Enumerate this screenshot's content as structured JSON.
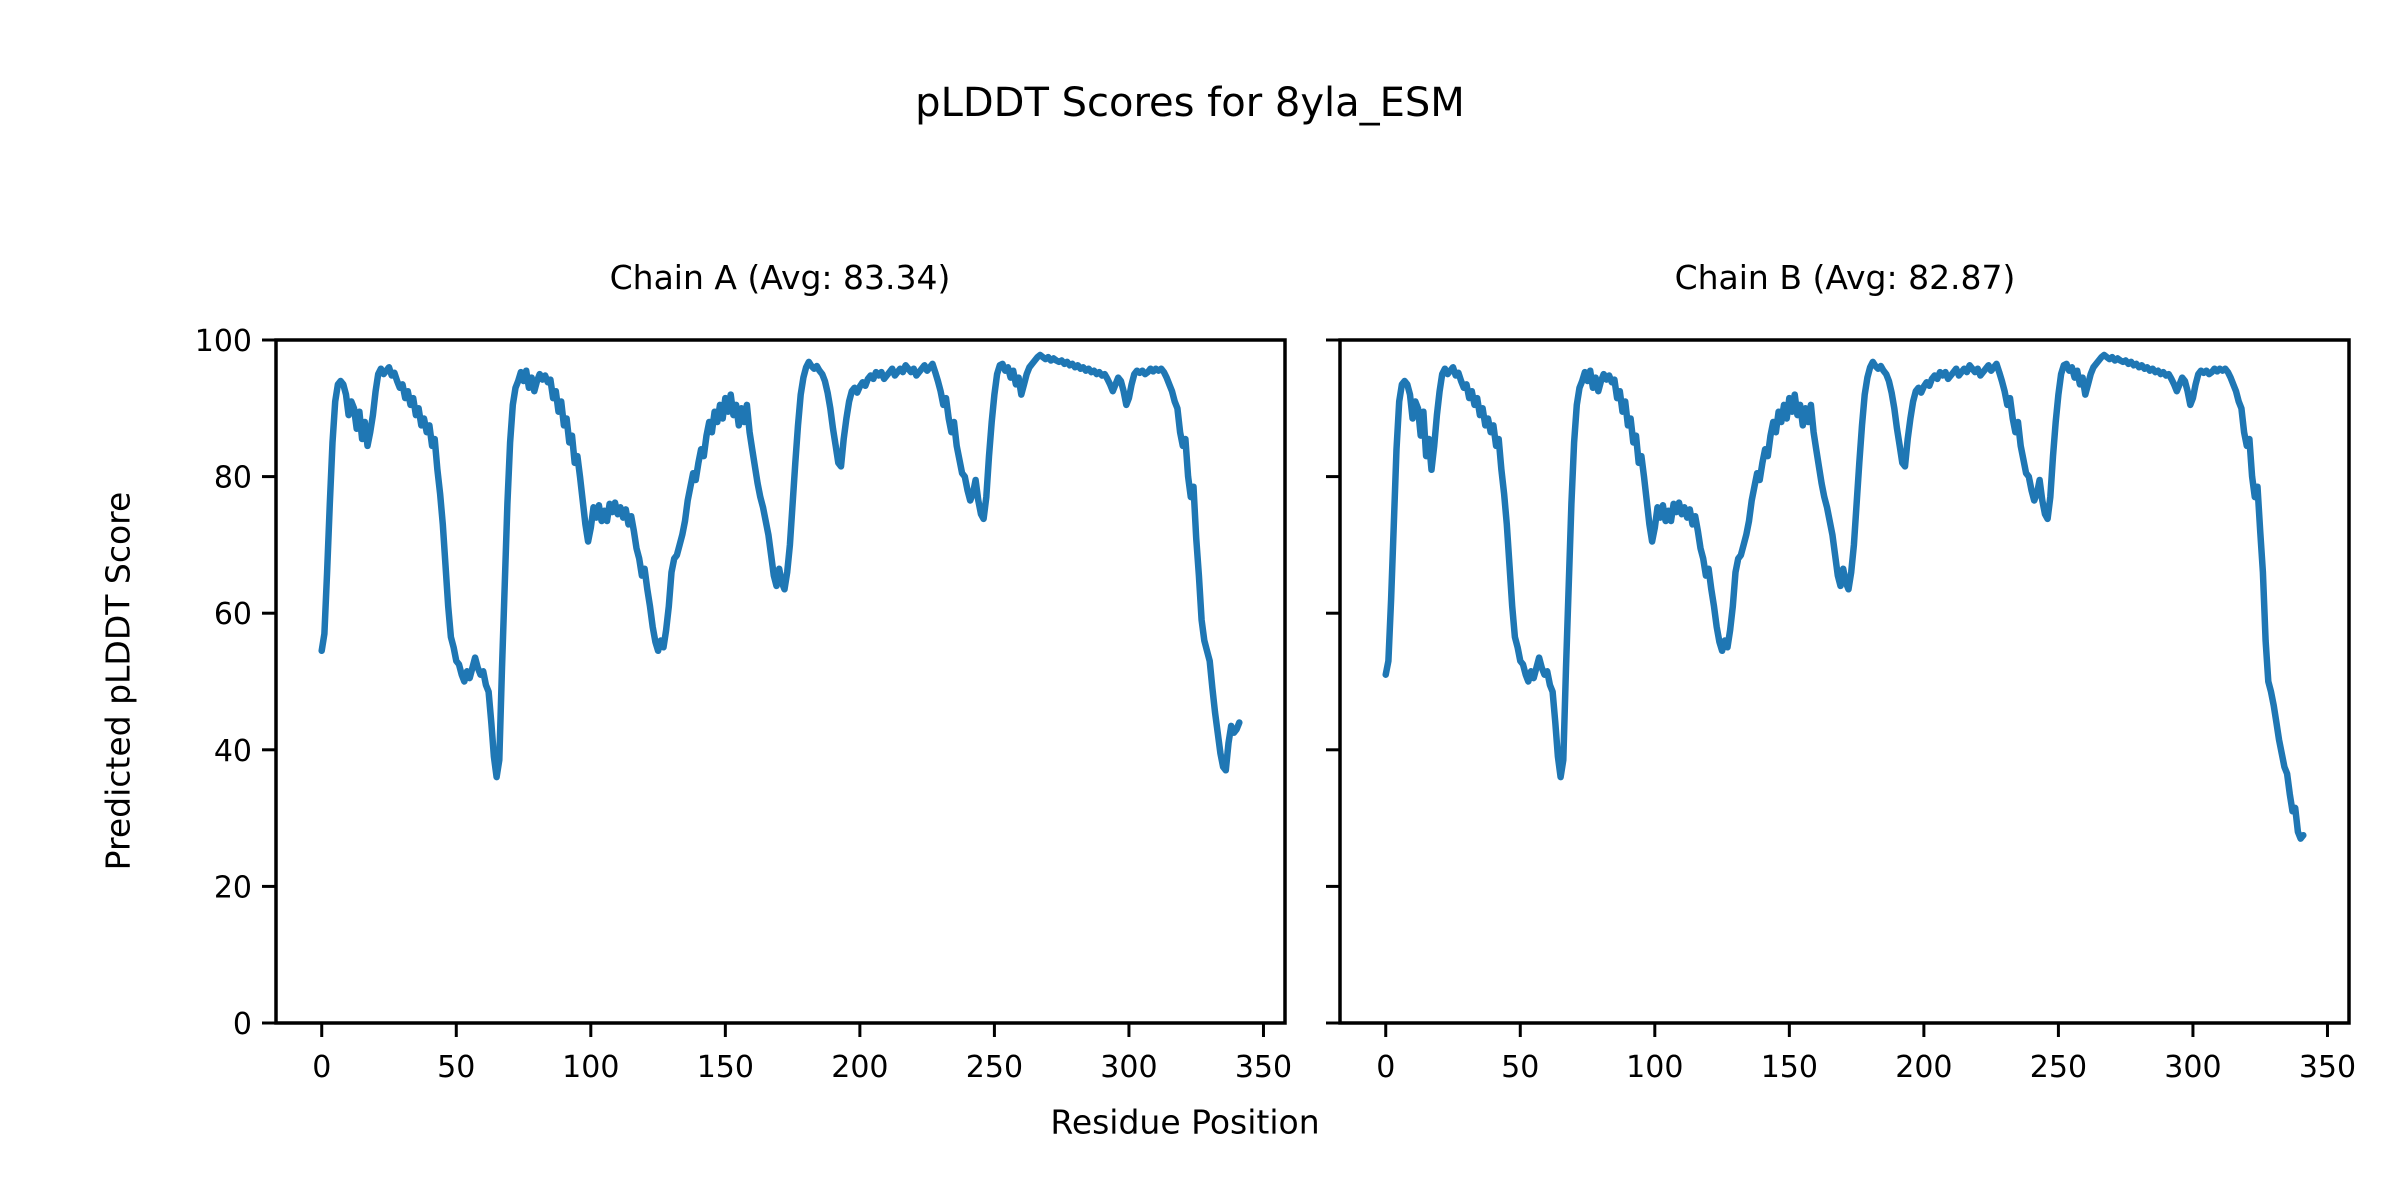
{
  "figure": {
    "suptitle": "pLDDT Scores for 8yla_ESM",
    "xlabel": "Residue Position",
    "ylabel": "Predicted pLDDT Score",
    "line_color": "#1f77b4",
    "text_color": "#000000",
    "background": "#ffffff"
  },
  "chart_data": [
    {
      "type": "line",
      "title": "Chain A (Avg: 83.34)",
      "chain": "A",
      "avg": 83.34,
      "xlabel": "Residue Position",
      "ylabel": "Predicted pLDDT Score",
      "xlim": [
        -17,
        358
      ],
      "ylim": [
        0,
        100
      ],
      "xticks": [
        0,
        50,
        100,
        150,
        200,
        250,
        300,
        350
      ],
      "yticks": [
        0,
        20,
        40,
        60,
        80,
        100
      ],
      "show_y_tick_labels": true,
      "grid": false,
      "legend": "none",
      "x_start": 0,
      "values": [
        54.5,
        57,
        66,
        76,
        85,
        91,
        93.5,
        94,
        93.5,
        92,
        89,
        91,
        90,
        87,
        89.5,
        85.5,
        88,
        84.5,
        86.5,
        89,
        92.5,
        95,
        95.8,
        95,
        95.5,
        96,
        94.8,
        95.2,
        94,
        93,
        93.5,
        91.5,
        92.5,
        90.5,
        91.5,
        89,
        90,
        87.5,
        88.5,
        86.5,
        87.5,
        84.5,
        85.5,
        81,
        77.5,
        73,
        67,
        61,
        56.5,
        55,
        53,
        52.5,
        51,
        50,
        51.5,
        50.5,
        52,
        53.5,
        52,
        51,
        51.5,
        49.5,
        48.5,
        44,
        39,
        36,
        38.5,
        52,
        64,
        76,
        85,
        90.5,
        93,
        94,
        95.3,
        94,
        95.5,
        93,
        94.5,
        92.5,
        94,
        95,
        94.2,
        94.8,
        93.8,
        94.2,
        91.5,
        92.5,
        89.5,
        91,
        87.5,
        88.5,
        85,
        86,
        82,
        83,
        80,
        76.5,
        73,
        70.5,
        72.5,
        75.5,
        74,
        75.8,
        73.5,
        75,
        73.5,
        76,
        74.8,
        76.2,
        74.5,
        75.5,
        74,
        75.2,
        73,
        74.2,
        72,
        69.5,
        68,
        65.5,
        66.5,
        63.5,
        61,
        58,
        55.8,
        54.5,
        56,
        55,
        57.5,
        61,
        66,
        68,
        68.5,
        70,
        71.5,
        73.5,
        76.5,
        78.5,
        80.5,
        79.5,
        82,
        84,
        83,
        86,
        88,
        86.5,
        89.5,
        88,
        90.5,
        88.5,
        91.5,
        89.5,
        92,
        89,
        90.5,
        87.5,
        90,
        88,
        90.5,
        86.5,
        84,
        81.5,
        79,
        77,
        75.5,
        73.5,
        71.5,
        68.5,
        65.5,
        64,
        66.5,
        64.5,
        63.5,
        66,
        70,
        76,
        82,
        87.5,
        92,
        94.5,
        96,
        96.8,
        96.2,
        95.8,
        96.2,
        95.5,
        95,
        94,
        92.3,
        90,
        87,
        84.5,
        82,
        81.5,
        85.5,
        88.5,
        91,
        92.5,
        93,
        92.3,
        93.2,
        93.8,
        93.3,
        94.3,
        94.8,
        94.3,
        95.3,
        94.8,
        95.3,
        94.3,
        94.8,
        95.3,
        95.8,
        94.8,
        95.3,
        95.8,
        95.3,
        96.3,
        95.8,
        95.3,
        95.8,
        94.8,
        95.3,
        95.8,
        96.3,
        95.5,
        96,
        96.5,
        95.3,
        94,
        92.5,
        90.5,
        91.5,
        88.5,
        86.5,
        88,
        84.5,
        82.5,
        80.5,
        80,
        78,
        76.5,
        77.5,
        79.5,
        76.5,
        74.5,
        73.8,
        77,
        83,
        88,
        92,
        95,
        96.3,
        96.5,
        95.5,
        96,
        94.5,
        95.5,
        93.5,
        94.5,
        92,
        93.5,
        95,
        96,
        96.5,
        97,
        97.5,
        97.8,
        97.5,
        97.2,
        97.5,
        97,
        97.3,
        97,
        96.8,
        97,
        96.5,
        96.8,
        96.3,
        96.5,
        96,
        96.3,
        95.8,
        96,
        95.5,
        95.8,
        95.3,
        95.5,
        95,
        95.3,
        94.8,
        95,
        94.3,
        93.5,
        92.5,
        93.5,
        94.5,
        94,
        92.5,
        90.5,
        91.5,
        93.5,
        95,
        95.5,
        95.2,
        95.5,
        95,
        95.3,
        95.8,
        95.4,
        95.8,
        95.5,
        95.8,
        95.3,
        94.5,
        93.5,
        92.5,
        91,
        90,
        86.5,
        84.5,
        85.5,
        80,
        77,
        78.5,
        71,
        65.5,
        59,
        56,
        54.5,
        53,
        49,
        45.5,
        42.5,
        39.5,
        37.5,
        37,
        41,
        43.5,
        42.5,
        43,
        44
      ]
    },
    {
      "type": "line",
      "title": "Chain B (Avg: 82.87)",
      "chain": "B",
      "avg": 82.87,
      "xlabel": "Residue Position",
      "ylabel": "Predicted pLDDT Score",
      "xlim": [
        -17,
        358
      ],
      "ylim": [
        0,
        100
      ],
      "xticks": [
        0,
        50,
        100,
        150,
        200,
        250,
        300,
        350
      ],
      "yticks": [
        0,
        20,
        40,
        60,
        80,
        100
      ],
      "show_y_tick_labels": false,
      "grid": false,
      "legend": "none",
      "x_start": 0,
      "values": [
        51,
        53,
        62,
        73,
        84,
        91,
        93.5,
        94,
        93.5,
        92,
        88.5,
        91,
        90,
        86,
        89.5,
        83,
        85.5,
        81,
        84.5,
        89,
        92.5,
        95,
        95.8,
        95,
        95.5,
        96,
        94.8,
        95.2,
        94,
        93,
        93.5,
        91.5,
        92.5,
        90.5,
        91.5,
        89,
        90,
        87.5,
        88.5,
        86.5,
        87.5,
        84.5,
        85.5,
        81,
        77.5,
        73,
        67,
        61,
        56.5,
        55,
        53,
        52.5,
        51,
        50,
        51.5,
        50.5,
        52,
        53.5,
        52,
        51,
        51.5,
        49.5,
        48.5,
        44,
        39,
        36,
        38.5,
        52,
        64,
        76,
        85,
        90.5,
        93,
        94,
        95.3,
        94,
        95.5,
        93,
        94.5,
        92.5,
        94,
        95,
        94.2,
        94.8,
        93.8,
        94.2,
        91.5,
        92.5,
        89.5,
        91,
        87.5,
        88.5,
        85,
        86,
        82,
        83,
        80,
        76.5,
        73,
        70.5,
        72.5,
        75.5,
        74,
        75.8,
        73.5,
        75,
        73.5,
        76,
        74.8,
        76.2,
        74.5,
        75.5,
        74,
        75.2,
        73,
        74.2,
        72,
        69.5,
        68,
        65.5,
        66.5,
        63.5,
        61,
        58,
        55.8,
        54.5,
        56,
        55,
        57.5,
        61,
        66,
        68,
        68.5,
        70,
        71.5,
        73.5,
        76.5,
        78.5,
        80.5,
        79.5,
        82,
        84,
        83,
        86,
        88,
        86.5,
        89.5,
        88,
        90.5,
        88.5,
        91.5,
        89.5,
        92,
        89,
        90.5,
        87.5,
        90,
        88,
        90.5,
        86.5,
        84,
        81.5,
        79,
        77,
        75.5,
        73.5,
        71.5,
        68.5,
        65.5,
        64,
        66.5,
        64.5,
        63.5,
        66,
        70,
        76,
        82,
        87.5,
        92,
        94.5,
        96,
        96.8,
        96.2,
        95.8,
        96.2,
        95.5,
        95,
        94,
        92.3,
        90,
        87,
        84.5,
        82,
        81.5,
        85.5,
        88.5,
        91,
        92.5,
        93,
        92.3,
        93.2,
        93.8,
        93.3,
        94.3,
        94.8,
        94.3,
        95.3,
        94.8,
        95.3,
        94.3,
        94.8,
        95.3,
        95.8,
        94.8,
        95.3,
        95.8,
        95.3,
        96.3,
        95.8,
        95.3,
        95.8,
        94.8,
        95.3,
        95.8,
        96.3,
        95.5,
        96,
        96.5,
        95.3,
        94,
        92.5,
        90.5,
        91.5,
        88.5,
        86.5,
        88,
        84.5,
        82.5,
        80.5,
        80,
        78,
        76.5,
        77.5,
        79.5,
        76.5,
        74.5,
        73.8,
        77,
        83,
        88,
        92,
        95,
        96.3,
        96.5,
        95.5,
        96,
        94.5,
        95.5,
        93.5,
        94.5,
        92,
        93.5,
        95,
        96,
        96.5,
        97,
        97.5,
        97.8,
        97.5,
        97.2,
        97.5,
        97,
        97.3,
        97,
        96.8,
        97,
        96.5,
        96.8,
        96.3,
        96.5,
        96,
        96.3,
        95.8,
        96,
        95.5,
        95.8,
        95.3,
        95.5,
        95,
        95.3,
        94.8,
        95,
        94.3,
        93.5,
        92.5,
        93.5,
        94.5,
        94,
        92.5,
        90.5,
        91.5,
        93.5,
        95,
        95.5,
        95.2,
        95.5,
        95,
        95.3,
        95.8,
        95.4,
        95.8,
        95.5,
        95.8,
        95.3,
        94.5,
        93.5,
        92.5,
        91,
        90,
        86.5,
        84.5,
        85.5,
        80,
        77,
        78.5,
        72,
        66,
        56,
        50,
        48.5,
        46.5,
        44,
        41.5,
        39.5,
        37.5,
        36.5,
        33.5,
        31,
        31.5,
        28,
        27,
        27.5
      ]
    }
  ]
}
